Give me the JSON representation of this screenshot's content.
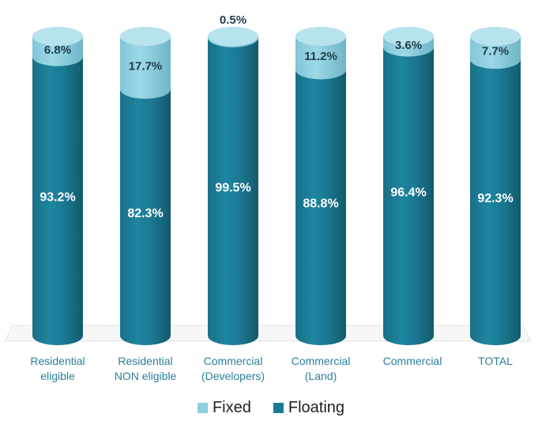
{
  "chart_data": {
    "type": "bar",
    "stacked": true,
    "percent": true,
    "categories": [
      [
        "Residential",
        "eligible"
      ],
      [
        "Residential",
        "NON eligible"
      ],
      [
        "Commercial",
        "(Developers)"
      ],
      [
        "Commercial",
        "(Land)"
      ],
      [
        "Commercial"
      ],
      [
        "TOTAL"
      ]
    ],
    "series": [
      {
        "name": "Fixed",
        "values": [
          6.8,
          17.7,
          0.5,
          11.2,
          3.6,
          7.7
        ],
        "labels": [
          "6.8%",
          "17.7%",
          "0.5%",
          "11.2%",
          "3.6%",
          "7.7%"
        ],
        "color": "#8ecfdf"
      },
      {
        "name": "Floating",
        "values": [
          93.2,
          82.3,
          99.5,
          88.8,
          96.4,
          92.3
        ],
        "labels": [
          "93.2%",
          "82.3%",
          "99.5%",
          "88.8%",
          "96.4%",
          "92.3%"
        ],
        "color": "#1b7a93"
      }
    ],
    "ylim": [
      0,
      100
    ],
    "legend_position": "bottom",
    "grid": false,
    "title": "",
    "xlabel": "",
    "ylabel": ""
  }
}
